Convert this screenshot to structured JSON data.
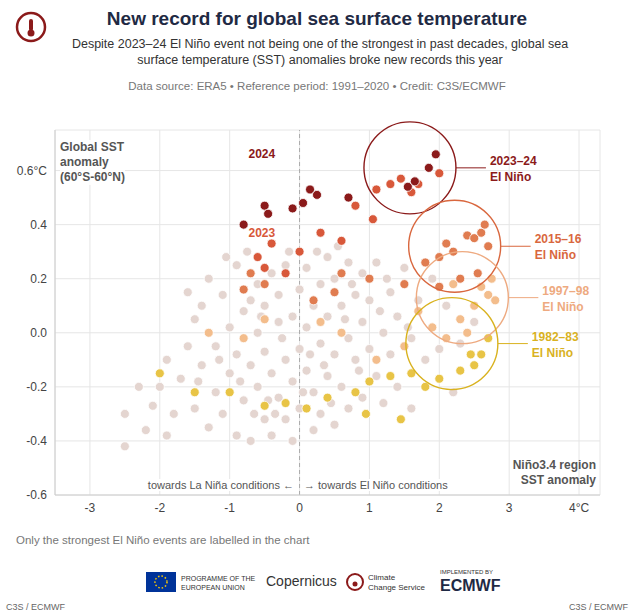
{
  "chart_data": {
    "type": "scatter",
    "title": "New record for global sea surface temperature",
    "subtitle": "Despite 2023–24 El Niño event not being one of the strongest in past decades, global sea surface temperature (SST) anomalies broke new records this year",
    "source": "Data source: ERA5 • Reference period: 1991–2020 • Credit: C3S/ECMWF",
    "y_label": [
      "Global SST",
      "anomaly",
      "(60°S-60°N)"
    ],
    "x_label": [
      "Niño3.4 region",
      "SST anomaly"
    ],
    "direction_labels": [
      "towards La Niña conditions ←",
      "→ towards El Niño conditions"
    ],
    "footnote": "Only the strongest El Niño events are labelled in the chart",
    "footer": {
      "eu": [
        "PROGRAMME OF THE",
        "EUROPEAN UNION"
      ],
      "copernicus": "Copernicus",
      "service": [
        "Climate",
        "Change Service"
      ],
      "implemented": "IMPLEMENTED BY",
      "ecmwf": "ECMWF",
      "credit": "C3S / ECMWF"
    },
    "xlim": [
      -3.5,
      4.3
    ],
    "xticks": [
      -3,
      -2,
      -1,
      0,
      1,
      2,
      3,
      {
        "value": 4,
        "label": "4°C"
      }
    ],
    "ylim": [
      -0.6,
      0.75
    ],
    "yticks": [
      -0.6,
      -0.4,
      -0.2,
      {
        "value": 0,
        "label": "0.0"
      },
      0.2,
      0.4,
      {
        "value": 0.6,
        "label": "0.6°C"
      }
    ],
    "grid": true,
    "marker": "circle",
    "reference_lines": [
      {
        "x": 0
      }
    ],
    "series": [
      {
        "color": "#e4d5d0",
        "points": [
          [
            -2.5,
            -0.3
          ],
          [
            -2.5,
            -0.42
          ],
          [
            -2.2,
            -0.36
          ],
          [
            -2.1,
            -0.27
          ],
          [
            -2.0,
            -0.2
          ],
          [
            -1.9,
            -0.1
          ],
          [
            -1.8,
            -0.3
          ],
          [
            -1.7,
            -0.17
          ],
          [
            -1.6,
            -0.05
          ],
          [
            -1.5,
            0.05
          ],
          [
            -1.5,
            -0.28
          ],
          [
            -1.4,
            0.1
          ],
          [
            -1.4,
            -0.12
          ],
          [
            -1.3,
            -0.35
          ],
          [
            -1.3,
            0.2
          ],
          [
            -1.2,
            -0.05
          ],
          [
            -1.2,
            -0.22
          ],
          [
            -1.1,
            0.14
          ],
          [
            -1.1,
            -0.3
          ],
          [
            -1.0,
            0.02
          ],
          [
            -1.0,
            -0.15
          ],
          [
            -0.9,
            0.25
          ],
          [
            -0.9,
            -0.38
          ],
          [
            -0.9,
            -0.08
          ],
          [
            -0.8,
            0.08
          ],
          [
            -0.8,
            -0.25
          ],
          [
            -0.7,
            -0.12
          ],
          [
            -0.7,
            0.12
          ],
          [
            -0.7,
            -0.4
          ],
          [
            -0.6,
            0.0
          ],
          [
            -0.6,
            -0.2
          ],
          [
            -0.6,
            0.18
          ],
          [
            -0.5,
            -0.32
          ],
          [
            -0.5,
            -0.07
          ],
          [
            -0.5,
            0.1
          ],
          [
            -0.4,
            0.22
          ],
          [
            -0.4,
            -0.15
          ],
          [
            -0.4,
            -0.38
          ],
          [
            -0.3,
            0.04
          ],
          [
            -0.3,
            -0.24
          ],
          [
            -0.3,
            0.14
          ],
          [
            -0.2,
            -0.1
          ],
          [
            -0.2,
            0.25
          ],
          [
            -0.2,
            -0.32
          ],
          [
            -0.1,
            0.06
          ],
          [
            -0.1,
            -0.18
          ],
          [
            -0.1,
            -0.4
          ],
          [
            0.0,
            0.16
          ],
          [
            0.0,
            -0.06
          ],
          [
            0.0,
            -0.28
          ],
          [
            0.1,
            0.24
          ],
          [
            0.1,
            -0.14
          ],
          [
            0.1,
            0.02
          ],
          [
            0.2,
            -0.22
          ],
          [
            0.2,
            0.1
          ],
          [
            0.2,
            -0.36
          ],
          [
            0.3,
            0.18
          ],
          [
            0.3,
            -0.04
          ],
          [
            0.3,
            -0.3
          ],
          [
            0.4,
            0.28
          ],
          [
            0.4,
            0.06
          ],
          [
            0.4,
            -0.16
          ],
          [
            0.5,
            -0.08
          ],
          [
            0.5,
            0.2
          ],
          [
            0.5,
            -0.34
          ],
          [
            0.6,
            0.1
          ],
          [
            0.6,
            -0.2
          ],
          [
            0.7,
            0.26
          ],
          [
            0.7,
            -0.02
          ],
          [
            0.7,
            -0.28
          ],
          [
            0.8,
            0.14
          ],
          [
            0.8,
            -0.1
          ],
          [
            0.9,
            0.04
          ],
          [
            0.9,
            -0.24
          ],
          [
            0.9,
            0.22
          ],
          [
            1.0,
            -0.06
          ],
          [
            1.0,
            0.12
          ],
          [
            1.1,
            0.26
          ],
          [
            1.1,
            -0.16
          ],
          [
            1.2,
            0.0
          ],
          [
            1.2,
            -0.26
          ],
          [
            1.3,
            0.15
          ],
          [
            1.3,
            -0.08
          ],
          [
            1.4,
            -0.2
          ],
          [
            1.4,
            0.06
          ],
          [
            1.5,
            0.24
          ],
          [
            1.6,
            -0.02
          ],
          [
            1.6,
            -0.28
          ],
          [
            1.7,
            0.12
          ],
          [
            1.8,
            -0.1
          ],
          [
            1.9,
            0.2
          ],
          [
            2.0,
            -0.06
          ],
          [
            2.1,
            0.1
          ],
          [
            2.2,
            -0.22
          ],
          [
            2.3,
            -0.04
          ],
          [
            2.5,
            0.04
          ],
          [
            -1.6,
            0.15
          ],
          [
            -2.3,
            -0.2
          ],
          [
            -1.9,
            -0.38
          ],
          [
            -0.75,
            0.3
          ],
          [
            -0.15,
            0.3
          ],
          [
            0.25,
            0.3
          ],
          [
            0.55,
            0.32
          ],
          [
            -1.05,
            0.28
          ],
          [
            -0.45,
            -0.25
          ],
          [
            0.05,
            -0.22
          ],
          [
            0.35,
            -0.12
          ],
          [
            0.65,
            0.05
          ],
          [
            0.15,
            -0.08
          ],
          [
            -0.25,
            -0.02
          ],
          [
            -0.55,
            0.06
          ],
          [
            -0.85,
            -0.18
          ],
          [
            -1.15,
            -0.1
          ],
          [
            -1.45,
            -0.18
          ],
          [
            0.85,
            -0.14
          ],
          [
            1.15,
            0.08
          ],
          [
            1.25,
            0.2
          ],
          [
            1.55,
            0.02
          ],
          [
            -0.65,
            -0.3
          ],
          [
            -0.35,
            -0.3
          ],
          [
            0.45,
            -0.26
          ],
          [
            0.75,
            0.18
          ]
        ]
      },
      {
        "color": "#e8c446",
        "points": [
          [
            2.7,
            -0.02
          ],
          [
            2.6,
            -0.08
          ],
          [
            2.5,
            -0.12
          ],
          [
            2.3,
            -0.14
          ],
          [
            2.0,
            -0.17
          ],
          [
            1.8,
            -0.2
          ],
          [
            1.6,
            -0.15
          ],
          [
            1.3,
            -0.16
          ],
          [
            1.0,
            -0.18
          ],
          [
            0.8,
            -0.22
          ],
          [
            0.4,
            -0.24
          ],
          [
            0.1,
            -0.28
          ],
          [
            -0.2,
            -0.26
          ],
          [
            -0.5,
            -0.27
          ],
          [
            -1.0,
            -0.22
          ],
          [
            -1.5,
            -0.22
          ],
          [
            -2.0,
            -0.15
          ],
          [
            0.95,
            -0.3
          ],
          [
            1.45,
            -0.32
          ],
          [
            2.45,
            -0.08
          ]
        ]
      },
      {
        "color": "#f3bd8c",
        "points": [
          [
            2.6,
            0.17
          ],
          [
            2.7,
            0.14
          ],
          [
            2.5,
            0.1
          ],
          [
            2.3,
            0.05
          ],
          [
            2.4,
            0.0
          ],
          [
            2.1,
            -0.02
          ],
          [
            1.9,
            0.02
          ],
          [
            1.5,
            -0.05
          ],
          [
            1.1,
            -0.1
          ],
          [
            0.6,
            0.0
          ],
          [
            0.3,
            0.04
          ],
          [
            -0.5,
            0.05
          ],
          [
            -0.8,
            -0.02
          ],
          [
            -1.3,
            0.0
          ],
          [
            2.75,
            0.2
          ],
          [
            2.8,
            0.12
          ],
          [
            2.2,
            0.18
          ],
          [
            1.7,
            0.08
          ]
        ]
      },
      {
        "color": "#e07c50",
        "points": [
          [
            1.8,
            0.26
          ],
          [
            2.0,
            0.28
          ],
          [
            2.1,
            0.33
          ],
          [
            2.2,
            0.3
          ],
          [
            2.4,
            0.36
          ],
          [
            2.5,
            0.35
          ],
          [
            2.6,
            0.37
          ],
          [
            2.7,
            0.32
          ],
          [
            2.55,
            0.22
          ],
          [
            2.3,
            0.2
          ],
          [
            2.0,
            0.17
          ],
          [
            1.5,
            0.18
          ],
          [
            1.0,
            0.2
          ],
          [
            0.5,
            0.15
          ],
          [
            -0.5,
            0.18
          ],
          [
            -0.7,
            0.22
          ],
          [
            -0.8,
            0.16
          ],
          [
            0.2,
            0.12
          ],
          [
            0.6,
            0.22
          ],
          [
            2.65,
            0.4
          ]
        ]
      },
      {
        "color": "#d8583a",
        "points": [
          [
            -0.6,
            0.28
          ],
          [
            -0.5,
            0.24
          ],
          [
            -0.4,
            0.33
          ],
          [
            -0.2,
            0.22
          ],
          [
            0.0,
            0.3
          ],
          [
            0.3,
            0.37
          ],
          [
            0.6,
            0.34
          ],
          [
            0.8,
            0.47
          ],
          [
            1.1,
            0.53
          ],
          [
            1.3,
            0.55
          ],
          [
            1.45,
            0.57
          ],
          [
            1.6,
            0.52
          ],
          [
            1.7,
            0.55
          ],
          [
            2.0,
            0.59
          ],
          [
            1.05,
            0.42
          ]
        ]
      },
      {
        "color": "#8b1a1a",
        "points": [
          [
            -0.8,
            0.4
          ],
          [
            -0.5,
            0.47
          ],
          [
            -0.45,
            0.44
          ],
          [
            -0.1,
            0.46
          ],
          [
            0.05,
            0.48
          ],
          [
            0.15,
            0.53
          ],
          [
            0.25,
            0.51
          ],
          [
            0.7,
            0.5
          ],
          [
            1.55,
            0.54
          ],
          [
            1.65,
            0.56
          ],
          [
            1.85,
            0.61
          ],
          [
            1.95,
            0.66
          ]
        ]
      }
    ],
    "point_labels": [
      {
        "text": "2024",
        "x": -0.54,
        "y": 0.66,
        "color": "#8b1a1a"
      },
      {
        "text": "2023",
        "x": -0.54,
        "y": 0.37,
        "color": "#d8583a"
      }
    ],
    "circles": [
      {
        "label": [
          "2023–24",
          "El Niño"
        ],
        "x": 1.58,
        "y": 0.61,
        "color": "#8b1a1a"
      },
      {
        "label": [
          "2015–16",
          "El Niño"
        ],
        "x": 2.22,
        "y": 0.32,
        "color": "#d9673e"
      },
      {
        "label": [
          "1997–98",
          "El Niño"
        ],
        "x": 2.33,
        "y": 0.13,
        "color": "#eeaa80"
      },
      {
        "label": [
          "1982–83",
          "El Niño"
        ],
        "x": 2.18,
        "y": -0.04,
        "color": "#d9b21f"
      }
    ]
  }
}
